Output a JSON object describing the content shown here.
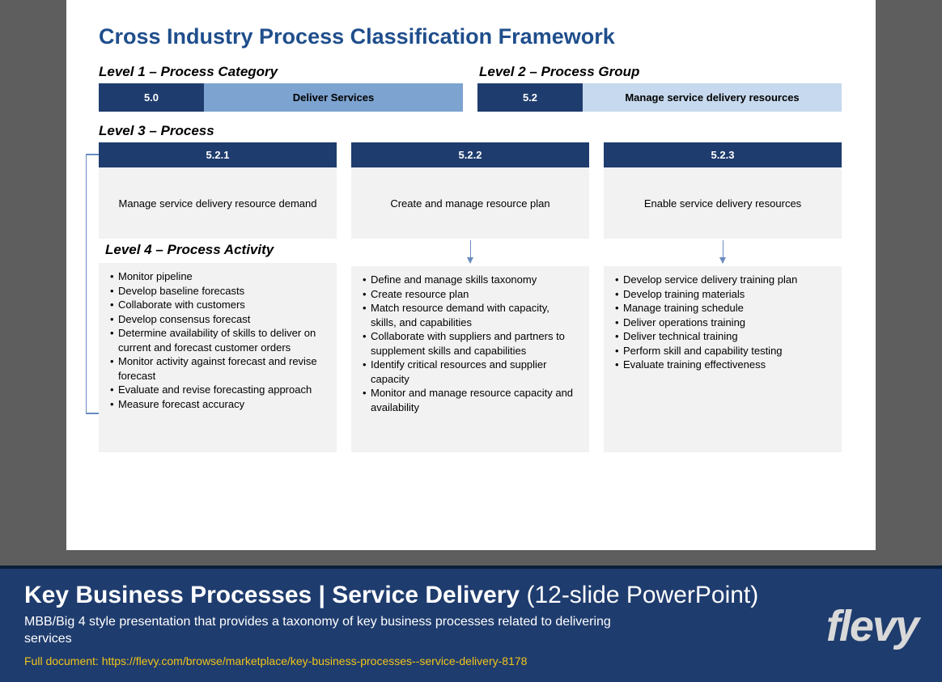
{
  "slide": {
    "title": "Cross Industry Process Classification Framework",
    "level1_label": "Level 1 – Process Category",
    "level2_label": "Level 2 – Process Group",
    "level3_label": "Level 3 – Process",
    "level4_label": "Level 4 – Process Activity",
    "level1": {
      "code": "5.0",
      "name": "Deliver Services"
    },
    "level2": {
      "code": "5.2",
      "name": "Manage service delivery resources"
    },
    "processes": [
      {
        "code": "5.2.1",
        "name": "Manage service delivery resource demand",
        "activities": [
          "Monitor pipeline",
          "Develop baseline forecasts",
          "Collaborate with customers",
          "Develop consensus forecast",
          "Determine availability of skills to deliver on current and forecast customer orders",
          "Monitor activity against forecast and revise forecast",
          "Evaluate and revise forecasting approach",
          "Measure forecast accuracy"
        ]
      },
      {
        "code": "5.2.2",
        "name": "Create and manage resource plan",
        "activities": [
          "Define and manage skills taxonomy",
          "Create resource plan",
          "Match resource demand with capacity, skills, and capabilities",
          "Collaborate with suppliers and partners to supplement skills and capabilities",
          "Identify critical resources and supplier capacity",
          "Monitor and manage resource capacity and availability"
        ]
      },
      {
        "code": "5.2.3",
        "name": "Enable service delivery resources",
        "activities": [
          "Develop service delivery training plan",
          "Develop training materials",
          "Manage training schedule",
          "Deliver operations training",
          "Deliver technical training",
          "Perform skill and capability testing",
          "Evaluate training effectiveness"
        ]
      }
    ]
  },
  "banner": {
    "title_bold": "Key Business Processes | Service Delivery",
    "title_light": " (12-slide PowerPoint)",
    "subtitle": "MBB/Big 4 style presentation that provides a taxonomy of key business processes related to delivering services",
    "link_label": "Full document: https://flevy.com/browse/marketplace/key-business-processes--service-delivery-8178",
    "logo": "flevy"
  },
  "colors": {
    "dark_blue": "#1f3c6e",
    "mid_blue": "#7da3d0",
    "light_blue": "#c7d9ee",
    "title_blue": "#1f4e8c",
    "grey_bg": "#f2f2f2",
    "page_bg": "#5e5e5e",
    "accent_yellow": "#f0c419",
    "arrow": "#6a8cc0"
  }
}
